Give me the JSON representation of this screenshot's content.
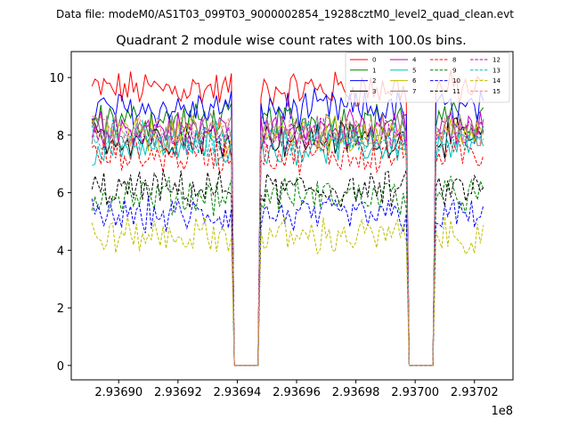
{
  "figure": {
    "suptitle": "Data file: modeM0/AS1T03_099T03_9000002854_19288cztM0_level2_quad_clean.evt"
  },
  "chart_data": {
    "type": "line",
    "title": "Quadrant 2 module wise count rates with 100.0s bins.",
    "xlabel": "",
    "ylabel": "",
    "x_offset_text": "1e8",
    "xlim": [
      293688400,
      293703300
    ],
    "ylim": [
      -0.5,
      10.9
    ],
    "xticks": [
      293690000,
      293692000,
      293694000,
      293696000,
      293698000,
      293700000,
      293702000
    ],
    "xtick_labels": [
      "2.93690",
      "2.93692",
      "2.93694",
      "2.93696",
      "2.93698",
      "2.93700",
      "2.93702"
    ],
    "yticks": [
      0,
      2,
      4,
      6,
      8,
      10
    ],
    "ytick_labels": [
      "0",
      "2",
      "4",
      "6",
      "8",
      "10"
    ],
    "grid": false,
    "legend_position": "top-right",
    "legend_columns": 4,
    "x_start": 293689100,
    "bin": 100,
    "segments": [
      {
        "start": 0,
        "end": 47
      },
      {
        "start": 57,
        "end": 106
      },
      {
        "start": 116,
        "end": 132
      }
    ],
    "gap_indices": [
      48,
      49,
      50,
      51,
      52,
      53,
      54,
      55,
      56,
      107,
      108,
      109,
      110,
      111,
      112,
      113,
      114,
      115
    ],
    "num_points": 133,
    "series": [
      {
        "name": "0",
        "color": "#ff0000",
        "dash": "solid",
        "mean": 9.6
      },
      {
        "name": "1",
        "color": "#008000",
        "dash": "solid",
        "mean": 8.5
      },
      {
        "name": "2",
        "color": "#0000ff",
        "dash": "solid",
        "mean": 8.9
      },
      {
        "name": "3",
        "color": "#000000",
        "dash": "solid",
        "mean": 7.9
      },
      {
        "name": "4",
        "color": "#bf00bf",
        "dash": "solid",
        "mean": 8.2
      },
      {
        "name": "5",
        "color": "#00bfbf",
        "dash": "solid",
        "mean": 7.6
      },
      {
        "name": "6",
        "color": "#bfbf00",
        "dash": "solid",
        "mean": 8.0
      },
      {
        "name": "7",
        "color": "#808080",
        "dash": "solid",
        "mean": 8.1
      },
      {
        "name": "8",
        "color": "#ff0000",
        "dash": "dashed",
        "mean": 7.3
      },
      {
        "name": "9",
        "color": "#008000",
        "dash": "dashed",
        "mean": 5.9
      },
      {
        "name": "10",
        "color": "#0000ff",
        "dash": "dashed",
        "mean": 5.2
      },
      {
        "name": "11",
        "color": "#000000",
        "dash": "dashed",
        "mean": 6.1
      },
      {
        "name": "12",
        "color": "#bf00bf",
        "dash": "dashed",
        "mean": 8.0
      },
      {
        "name": "13",
        "color": "#00bfbf",
        "dash": "dashed",
        "mean": 7.9
      },
      {
        "name": "14",
        "color": "#bfbf00",
        "dash": "dashed",
        "mean": 4.5
      },
      {
        "name": "15",
        "color": "#ff8080",
        "dash": "dashed",
        "mean": 8.1
      }
    ]
  }
}
